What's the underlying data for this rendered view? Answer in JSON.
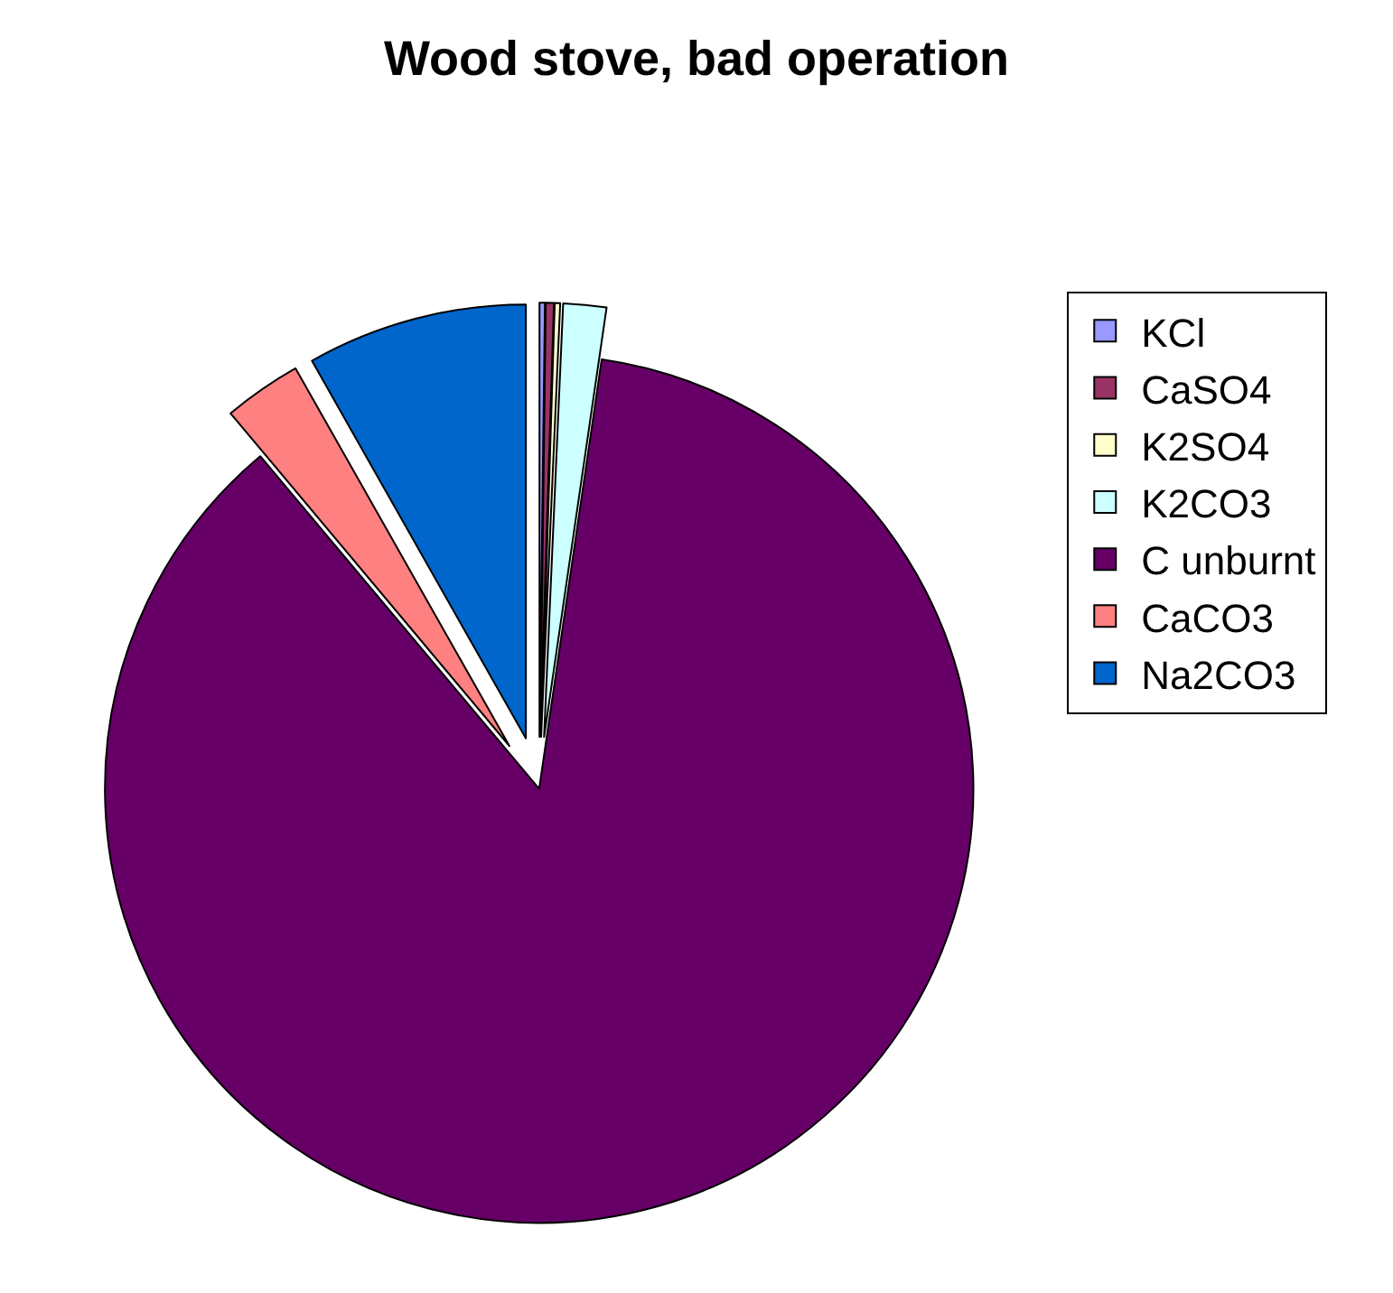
{
  "chart_data": {
    "type": "pie",
    "title": "Wood stove, bad operation",
    "categories": [
      "KCl",
      "CaSO4",
      "K2SO4",
      "K2CO3",
      "C unburnt",
      "CaCO3",
      "Na2CO3"
    ],
    "values": [
      0.2,
      0.3,
      0.2,
      1.6,
      86.6,
      2.9,
      8.2
    ],
    "colors": [
      "#9999ff",
      "#993366",
      "#ffffcc",
      "#ccffff",
      "#660066",
      "#ff8080",
      "#0066cc"
    ],
    "legend": "right"
  }
}
